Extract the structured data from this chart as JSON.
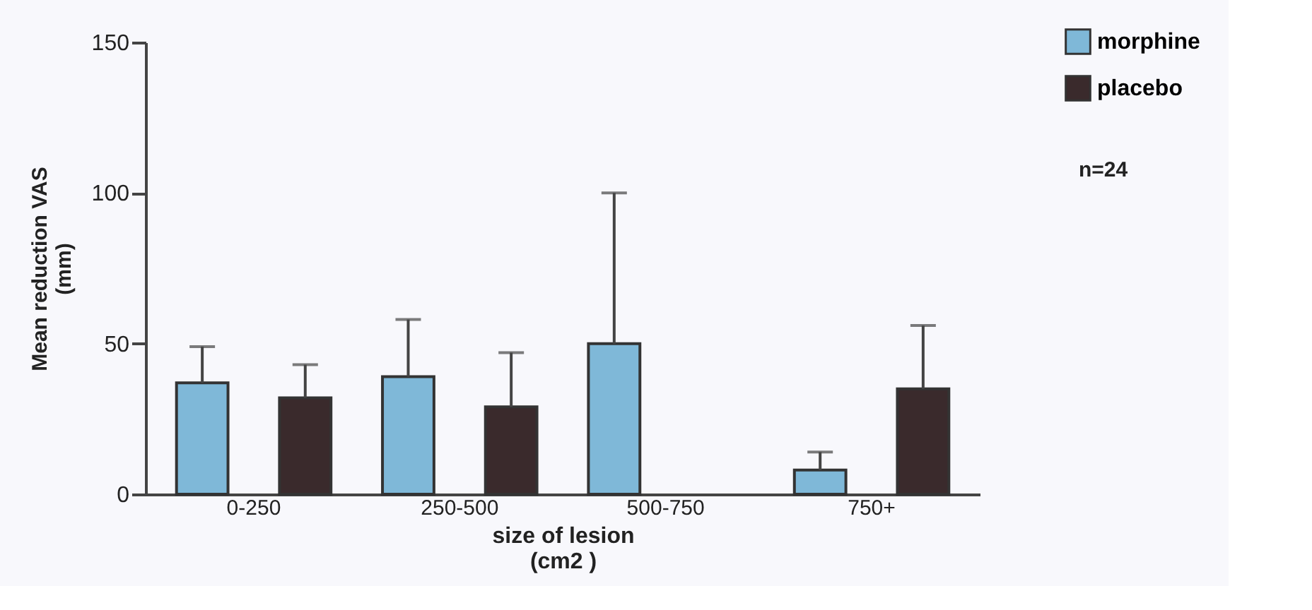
{
  "chart_data": {
    "type": "bar",
    "xlabel": "size of lesion\n(cm2 )",
    "ylabel": "Mean reduction VAS\n(mm)",
    "categories": [
      "0-250",
      "250-500",
      "500-750",
      "750+"
    ],
    "series": [
      {
        "name": "morphine",
        "color": "#7fb8d8",
        "values": [
          37,
          39,
          50,
          8
        ],
        "errors": [
          [
            37,
            49
          ],
          [
            39,
            58
          ],
          [
            50,
            100
          ],
          [
            8,
            14
          ]
        ]
      },
      {
        "name": "placebo",
        "color": "#3a2a2c",
        "values": [
          32,
          29,
          null,
          35
        ],
        "errors": [
          [
            32,
            43
          ],
          [
            29,
            47
          ],
          null,
          [
            35,
            56
          ]
        ]
      }
    ],
    "ylim": [
      0,
      150
    ],
    "yticks": [
      0,
      50,
      100,
      150
    ],
    "grid": false,
    "legend": "top right",
    "annotations": [
      "n=24"
    ]
  }
}
